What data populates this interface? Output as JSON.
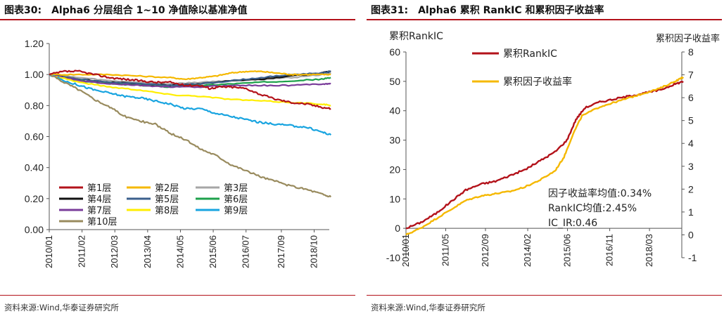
{
  "left": {
    "fig_number": "图表30:",
    "fig_title": "Alpha6 分层组合 1~10 净值除以基准净值",
    "source": "资料来源:Wind,华泰证券研究所"
  },
  "right": {
    "fig_number": "图表31:",
    "fig_title": "Alpha6 累积 RankIC 和累积因子收益率",
    "source": "资料来源:Wind,华泰证券研究所"
  },
  "chart_data": [
    {
      "type": "line",
      "title": "Alpha6 分层组合 1~10 净值除以基准净值",
      "xlabel": "",
      "ylabel": "",
      "ylim": [
        0,
        1.2
      ],
      "y_ticks": [
        "0.00",
        "0.20",
        "0.40",
        "0.60",
        "0.80",
        "1.00",
        "1.20"
      ],
      "x_ticks": [
        "2010/01",
        "2011/02",
        "2012/03",
        "2013/04",
        "2014/05",
        "2015/06",
        "2016/07",
        "2017/09",
        "2018/10"
      ],
      "x_range": [
        "2010/01",
        "2019/04"
      ],
      "legend": "bottom-left",
      "grid": false,
      "series": [
        {
          "name": "第1层",
          "color": "#b3121a",
          "x": [
            2010.0,
            2010.5,
            2011.0,
            2011.5,
            2012.0,
            2012.5,
            2013.0,
            2013.5,
            2014.0,
            2014.5,
            2015.0,
            2015.3,
            2015.6,
            2016.0,
            2016.5,
            2017.0,
            2017.5,
            2018.0,
            2018.5,
            2019.0,
            2019.3
          ],
          "values": [
            1.0,
            1.02,
            1.02,
            1.0,
            0.98,
            0.97,
            0.96,
            0.95,
            0.95,
            0.93,
            0.93,
            0.91,
            0.92,
            0.92,
            0.91,
            0.87,
            0.84,
            0.82,
            0.81,
            0.79,
            0.78
          ]
        },
        {
          "name": "第2层",
          "color": "#f5b800",
          "x": [
            2010.0,
            2011.0,
            2012.0,
            2013.0,
            2014.0,
            2014.5,
            2015.0,
            2015.5,
            2016.0,
            2016.5,
            2017.0,
            2017.5,
            2018.0,
            2018.5,
            2019.0,
            2019.3
          ],
          "values": [
            1.0,
            1.0,
            1.0,
            0.99,
            0.98,
            0.97,
            0.98,
            0.99,
            1.01,
            1.02,
            1.02,
            1.01,
            1.0,
            1.0,
            1.0,
            1.0
          ]
        },
        {
          "name": "第3层",
          "color": "#a6a6a6",
          "x": [
            2010.0,
            2011.0,
            2012.0,
            2013.0,
            2014.0,
            2015.0,
            2016.0,
            2017.0,
            2018.0,
            2019.0,
            2019.3
          ],
          "values": [
            1.0,
            0.98,
            0.96,
            0.95,
            0.94,
            0.95,
            0.96,
            0.97,
            0.98,
            1.0,
            1.01
          ]
        },
        {
          "name": "第4层",
          "color": "#111111",
          "x": [
            2010.0,
            2011.0,
            2012.0,
            2013.0,
            2014.0,
            2015.0,
            2016.0,
            2017.0,
            2018.0,
            2019.0,
            2019.3
          ],
          "values": [
            1.0,
            0.97,
            0.95,
            0.94,
            0.93,
            0.94,
            0.96,
            0.97,
            0.99,
            1.01,
            1.02
          ]
        },
        {
          "name": "第5层",
          "color": "#3b5f8c",
          "x": [
            2010.0,
            2011.0,
            2012.0,
            2013.0,
            2014.0,
            2015.0,
            2016.0,
            2017.0,
            2018.0,
            2019.0,
            2019.3
          ],
          "values": [
            1.0,
            0.97,
            0.95,
            0.94,
            0.93,
            0.94,
            0.96,
            0.98,
            1.0,
            1.01,
            1.02
          ]
        },
        {
          "name": "第6层",
          "color": "#1ea14b",
          "x": [
            2010.0,
            2011.0,
            2012.0,
            2013.0,
            2014.0,
            2015.0,
            2016.0,
            2017.0,
            2018.0,
            2019.0,
            2019.3
          ],
          "values": [
            1.0,
            0.96,
            0.94,
            0.93,
            0.92,
            0.93,
            0.94,
            0.95,
            0.96,
            0.97,
            0.98
          ]
        },
        {
          "name": "第7层",
          "color": "#7a3c9a",
          "x": [
            2010.0,
            2011.0,
            2012.0,
            2013.0,
            2014.0,
            2015.0,
            2016.0,
            2017.0,
            2018.0,
            2019.0,
            2019.3
          ],
          "values": [
            1.0,
            0.96,
            0.94,
            0.93,
            0.92,
            0.92,
            0.93,
            0.93,
            0.93,
            0.94,
            0.94
          ]
        },
        {
          "name": "第8层",
          "color": "#ffee00",
          "x": [
            2010.0,
            2011.0,
            2012.0,
            2013.0,
            2014.0,
            2015.0,
            2016.0,
            2017.0,
            2018.0,
            2019.0,
            2019.3
          ],
          "values": [
            1.0,
            0.95,
            0.92,
            0.9,
            0.87,
            0.86,
            0.84,
            0.83,
            0.82,
            0.81,
            0.8
          ]
        },
        {
          "name": "第9层",
          "color": "#18a4e0",
          "x": [
            2010.0,
            2010.5,
            2011.0,
            2011.5,
            2012.0,
            2012.5,
            2013.0,
            2013.5,
            2014.0,
            2014.5,
            2015.0,
            2015.5,
            2016.0,
            2016.5,
            2017.0,
            2017.5,
            2018.0,
            2018.5,
            2019.0,
            2019.3
          ],
          "values": [
            1.0,
            0.96,
            0.93,
            0.9,
            0.88,
            0.86,
            0.85,
            0.83,
            0.81,
            0.78,
            0.78,
            0.75,
            0.73,
            0.71,
            0.69,
            0.68,
            0.67,
            0.66,
            0.63,
            0.61
          ]
        },
        {
          "name": "第10层",
          "color": "#998b5e",
          "x": [
            2010.0,
            2010.5,
            2011.0,
            2011.5,
            2012.0,
            2012.5,
            2013.0,
            2013.5,
            2014.0,
            2014.5,
            2015.0,
            2015.5,
            2016.0,
            2016.5,
            2017.0,
            2017.5,
            2018.0,
            2018.5,
            2019.0,
            2019.3
          ],
          "values": [
            1.0,
            0.95,
            0.9,
            0.84,
            0.79,
            0.73,
            0.7,
            0.68,
            0.62,
            0.58,
            0.52,
            0.48,
            0.42,
            0.38,
            0.34,
            0.31,
            0.28,
            0.26,
            0.23,
            0.21
          ]
        }
      ]
    },
    {
      "type": "line",
      "title": "Alpha6 累积 RankIC 和累积因子收益率",
      "xlabel": "",
      "ylabel": "累积RankIC",
      "ylabel_right": "累积因子收益率",
      "ylim": [
        -10,
        60
      ],
      "ylim_right": [
        -1,
        8
      ],
      "y_ticks": [
        "-10",
        "0",
        "10",
        "20",
        "30",
        "40",
        "50",
        "60"
      ],
      "y_ticks_right": [
        "-1",
        "0",
        "1",
        "2",
        "3",
        "4",
        "5",
        "6",
        "7",
        "8"
      ],
      "x_ticks": [
        "2010/01",
        "2011/05",
        "2012/09",
        "2014/02",
        "2015/06",
        "2016/11",
        "2018/03"
      ],
      "x_range": [
        "2010/01",
        "2019/04"
      ],
      "legend": "top-center",
      "grid": false,
      "annotations": [
        "因子收益率均值:0.34%",
        "RankIC均值:2.45%",
        "IC_IR:0.46"
      ],
      "series": [
        {
          "name": "累积RankIC",
          "axis": "left",
          "color": "#b3121a",
          "x": [
            2010.0,
            2010.5,
            2011.0,
            2011.5,
            2012.0,
            2012.5,
            2013.0,
            2013.5,
            2014.0,
            2014.5,
            2015.0,
            2015.4,
            2015.7,
            2016.0,
            2016.5,
            2017.0,
            2017.5,
            2018.0,
            2018.5,
            2019.0,
            2019.3
          ],
          "values": [
            0,
            2,
            5,
            9,
            13,
            15,
            16,
            18,
            20,
            23,
            26,
            30,
            37,
            41,
            43,
            44,
            45,
            46,
            47,
            49,
            50
          ]
        },
        {
          "name": "累积因子收益率",
          "axis": "right",
          "color": "#f5b800",
          "x": [
            2010.0,
            2010.5,
            2011.0,
            2011.5,
            2012.0,
            2012.5,
            2013.0,
            2013.5,
            2014.0,
            2014.5,
            2015.0,
            2015.3,
            2015.6,
            2015.9,
            2016.5,
            2017.0,
            2017.5,
            2018.0,
            2018.5,
            2019.0,
            2019.3
          ],
          "values": [
            0.0,
            0.3,
            0.7,
            1.1,
            1.5,
            1.7,
            1.8,
            1.9,
            2.1,
            2.4,
            2.8,
            3.4,
            4.4,
            5.2,
            5.6,
            5.8,
            6.0,
            6.2,
            6.4,
            6.7,
            6.9
          ]
        }
      ]
    }
  ]
}
